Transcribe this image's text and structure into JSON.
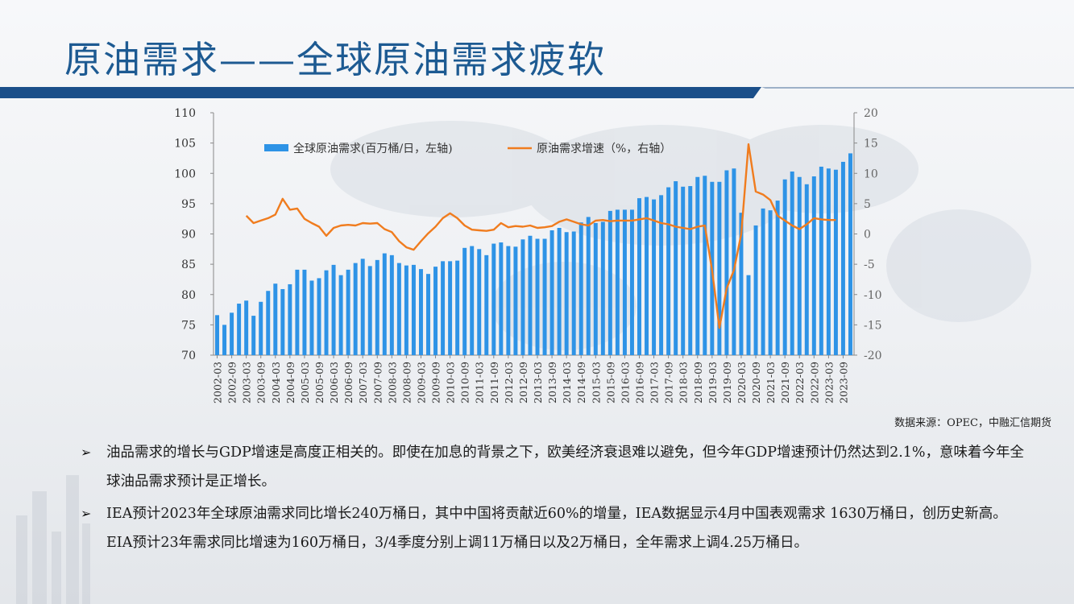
{
  "title": "原油需求——全球原油需求疲软",
  "source": "数据来源：OPEC，中融汇信期货",
  "bullets": [
    "油品需求的增长与GDP增速是高度正相关的。即使在加息的背景之下，欧美经济衰退难以避免，但今年GDP增速预计仍然达到2.1%，意味着今年全球油品需求预计是正增长。",
    "IEA预计2023年全球原油需求同比增长240万桶日，其中中国将贡献近60%的增量，IEA数据显示4月中国表观需求 1630万桶日，创历史新高。EIA预计23年需求同比增速为160万桶日，3/4季度分别上调11万桶日以及2万桶日，全年需求上调4.25万桶日。"
  ],
  "colors": {
    "title": "#1d5a92",
    "bar": "#2e93e6",
    "line": "#f07c1e",
    "band": "#1b4f8a"
  },
  "chart_data": {
    "type": "bar+line",
    "legend_position": "top",
    "grid": false,
    "yaxis_left": {
      "min": 70,
      "max": 110,
      "ticks": [
        70,
        75,
        80,
        85,
        90,
        95,
        100,
        105,
        110
      ]
    },
    "yaxis_right": {
      "min": -20,
      "max": 20,
      "ticks": [
        -20,
        -15,
        -10,
        -5,
        0,
        5,
        10,
        15,
        20
      ]
    },
    "x_tick_labels": [
      "2002-03",
      "2002-09",
      "2003-03",
      "2003-09",
      "2004-03",
      "2004-09",
      "2005-03",
      "2005-09",
      "2006-03",
      "2006-09",
      "2007-03",
      "2007-09",
      "2008-03",
      "2008-09",
      "2009-03",
      "2009-09",
      "2010-03",
      "2010-09",
      "2011-03",
      "2011-09",
      "2012-03",
      "2012-09",
      "2013-03",
      "2013-09",
      "2014-03",
      "2014-09",
      "2015-03",
      "2015-09",
      "2016-03",
      "2016-09",
      "2017-03",
      "2017-09",
      "2018-03",
      "2018-09",
      "2019-03",
      "2019-09",
      "2020-03",
      "2020-09",
      "2021-03",
      "2021-09",
      "2022-03",
      "2022-09",
      "2023-03",
      "2023-09"
    ],
    "series": [
      {
        "name": "全球原油需求(百万桶/日，左轴)",
        "type": "bar",
        "axis": "left",
        "values": [
          76.6,
          75.0,
          77.0,
          78.5,
          79.0,
          76.5,
          78.8,
          80.6,
          81.8,
          80.9,
          81.7,
          84.1,
          84.1,
          82.3,
          82.7,
          84.0,
          84.9,
          83.2,
          84.1,
          85.2,
          85.9,
          84.7,
          85.7,
          86.8,
          86.5,
          85.2,
          84.8,
          84.9,
          84.2,
          83.4,
          84.6,
          85.5,
          85.5,
          85.6,
          87.7,
          88.0,
          87.5,
          86.5,
          88.4,
          88.6,
          88.0,
          87.9,
          89.1,
          89.7,
          89.2,
          89.2,
          90.6,
          91.0,
          90.3,
          90.4,
          91.9,
          92.8,
          91.8,
          92.0,
          93.8,
          94.0,
          94.0,
          94.0,
          95.9,
          96.1,
          95.7,
          96.4,
          97.7,
          98.7,
          97.8,
          97.9,
          99.4,
          99.6,
          98.6,
          98.6,
          100.5,
          100.8,
          93.5,
          83.2,
          91.4,
          94.2,
          93.9,
          95.5,
          99.0,
          100.3,
          99.4,
          98.2,
          99.5,
          101.1,
          100.8,
          100.6,
          101.9,
          103.3
        ]
      },
      {
        "name": "原油需求增速（%，右轴）",
        "type": "line",
        "axis": "right",
        "points": [
          [
            4,
            3.0
          ],
          [
            5,
            1.8
          ],
          [
            6,
            2.2
          ],
          [
            7,
            2.6
          ],
          [
            8,
            3.2
          ],
          [
            9,
            5.8
          ],
          [
            10,
            4.0
          ],
          [
            11,
            4.2
          ],
          [
            12,
            2.5
          ],
          [
            13,
            1.8
          ],
          [
            14,
            1.2
          ],
          [
            15,
            -0.3
          ],
          [
            16,
            1.0
          ],
          [
            17,
            1.4
          ],
          [
            18,
            1.5
          ],
          [
            19,
            1.4
          ],
          [
            20,
            1.8
          ],
          [
            21,
            1.7
          ],
          [
            22,
            1.8
          ],
          [
            23,
            0.8
          ],
          [
            24,
            0.3
          ],
          [
            25,
            -1.2
          ],
          [
            26,
            -2.2
          ],
          [
            27,
            -2.6
          ],
          [
            28,
            -1.2
          ],
          [
            29,
            0.1
          ],
          [
            30,
            1.2
          ],
          [
            31,
            2.6
          ],
          [
            32,
            3.4
          ],
          [
            33,
            2.6
          ],
          [
            34,
            1.4
          ],
          [
            35,
            0.7
          ],
          [
            36,
            0.6
          ],
          [
            37,
            0.5
          ],
          [
            38,
            0.7
          ],
          [
            39,
            1.8
          ],
          [
            40,
            1.1
          ],
          [
            41,
            1.3
          ],
          [
            42,
            1.2
          ],
          [
            43,
            1.4
          ],
          [
            44,
            1.0
          ],
          [
            45,
            1.1
          ],
          [
            46,
            1.3
          ],
          [
            47,
            2.0
          ],
          [
            48,
            2.4
          ],
          [
            49,
            2.0
          ],
          [
            50,
            1.6
          ],
          [
            51,
            1.4
          ],
          [
            52,
            2.2
          ],
          [
            53,
            2.3
          ],
          [
            54,
            2.1
          ],
          [
            55,
            2.2
          ],
          [
            56,
            2.2
          ],
          [
            57,
            2.2
          ],
          [
            58,
            2.4
          ],
          [
            59,
            2.6
          ],
          [
            60,
            2.2
          ],
          [
            61,
            1.8
          ],
          [
            62,
            1.6
          ],
          [
            63,
            1.2
          ],
          [
            64,
            1.0
          ],
          [
            65,
            0.8
          ],
          [
            66,
            1.2
          ],
          [
            67,
            1.4
          ],
          [
            68,
            -6.0
          ],
          [
            69,
            -15.5
          ],
          [
            70,
            -9.0
          ],
          [
            71,
            -6.0
          ],
          [
            72,
            0.0
          ],
          [
            73,
            14.8
          ],
          [
            74,
            7.0
          ],
          [
            75,
            6.5
          ],
          [
            76,
            5.6
          ],
          [
            77,
            3.0
          ],
          [
            78,
            2.2
          ],
          [
            79,
            1.4
          ],
          [
            80,
            0.8
          ],
          [
            81,
            1.6
          ],
          [
            82,
            2.6
          ],
          [
            83,
            2.4
          ],
          [
            84,
            2.3
          ],
          [
            85,
            2.3
          ]
        ]
      }
    ]
  }
}
